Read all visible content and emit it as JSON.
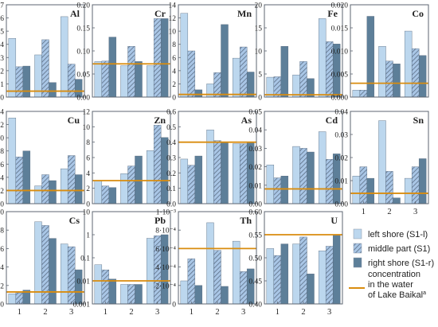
{
  "colors": {
    "left": "#bcd7ee",
    "middle": "#a9c6e6",
    "middle_hatch": "#5c6f86",
    "right": "#5d7f99",
    "baikal": "#d98c0e",
    "border": "#5c6470"
  },
  "legend": {
    "left": "left shore (S1-l)",
    "middle": "middle part (S1)",
    "right": "right shore (S1-r)",
    "line1": "concentration",
    "line2": "in the water",
    "line3": "of Lake Baikal",
    "sup": "a"
  },
  "chart_data": [
    {
      "element": "Al",
      "type": "bar",
      "categories": [
        "1",
        "2",
        "3"
      ],
      "ylim": [
        0,
        7
      ],
      "ticks": [
        "0",
        "1",
        "2",
        "3",
        "4",
        "5",
        "6",
        "7"
      ],
      "series": [
        {
          "name": "left shore (S1-l)",
          "values": [
            4.45,
            3.2,
            6.1
          ]
        },
        {
          "name": "middle part (S1)",
          "values": [
            2.3,
            4.35,
            2.5
          ]
        },
        {
          "name": "right shore (S1-r)",
          "values": [
            2.35,
            1.1,
            1.35
          ]
        }
      ],
      "baikal": 0.45
    },
    {
      "element": "Cr",
      "type": "bar",
      "categories": [
        "1",
        "2",
        "3"
      ],
      "ylim": [
        0,
        0.2
      ],
      "ticks": [
        "0.00",
        "0.05",
        "0.10",
        "0.15",
        "0.20"
      ],
      "series": [
        {
          "name": "left shore (S1-l)",
          "values": [
            0.077,
            0.068,
            0.068
          ]
        },
        {
          "name": "middle part (S1)",
          "values": [
            0.078,
            0.11,
            0.17
          ]
        },
        {
          "name": "right shore (S1-r)",
          "values": [
            0.13,
            0.077,
            0.17
          ]
        }
      ],
      "baikal": 0.072
    },
    {
      "element": "Mn",
      "type": "bar",
      "categories": [
        "1",
        "2",
        "3"
      ],
      "ylim": [
        0,
        14
      ],
      "ticks": [
        "0",
        "2",
        "4",
        "6",
        "8",
        "10",
        "12",
        "14"
      ],
      "series": [
        {
          "name": "left shore (S1-l)",
          "values": [
            12.7,
            2.0,
            5.9
          ]
        },
        {
          "name": "middle part (S1)",
          "values": [
            7.0,
            3.7,
            7.6
          ]
        },
        {
          "name": "right shore (S1-r)",
          "values": [
            1.1,
            11.0,
            3.8
          ]
        }
      ],
      "baikal": 0.4
    },
    {
      "element": "Fe",
      "type": "bar",
      "categories": [
        "1",
        "2",
        "3"
      ],
      "ylim": [
        0,
        20
      ],
      "ticks": [
        "0",
        "5",
        "10",
        "15",
        "20"
      ],
      "series": [
        {
          "name": "left shore (S1-l)",
          "values": [
            4.3,
            4.8,
            17.0
          ]
        },
        {
          "name": "middle part (S1)",
          "values": [
            4.4,
            7.7,
            12.0
          ]
        },
        {
          "name": "right shore (S1-r)",
          "values": [
            11.0,
            4.0,
            11.5
          ]
        }
      ],
      "baikal": 0.5
    },
    {
      "element": "Co",
      "type": "bar",
      "categories": [
        "1",
        "2",
        "3"
      ],
      "ylim": [
        0,
        0.02
      ],
      "ticks": [
        "0.000",
        "0.005",
        "0.010",
        "0.015",
        "0.020"
      ],
      "series": [
        {
          "name": "left shore (S1-l)",
          "values": [
            0.0015,
            0.011,
            0.0143
          ]
        },
        {
          "name": "middle part (S1)",
          "values": [
            0.0015,
            0.0078,
            0.0105
          ]
        },
        {
          "name": "right shore (S1-r)",
          "values": [
            0.0175,
            0.0072,
            0.009
          ]
        }
      ],
      "baikal": 0.003
    },
    {
      "element": "Cu",
      "type": "bar",
      "categories": [
        "1",
        "2",
        "3"
      ],
      "ylim": [
        0,
        1.4
      ],
      "ticks": [
        "0.0",
        "0.2",
        "0.4",
        "0.6",
        "0.8",
        "1.0",
        "1.2",
        "1.4"
      ],
      "series": [
        {
          "name": "left shore (S1-l)",
          "values": [
            1.3,
            0.27,
            0.53
          ]
        },
        {
          "name": "middle part (S1)",
          "values": [
            0.71,
            0.44,
            0.73
          ]
        },
        {
          "name": "right shore (S1-r)",
          "values": [
            0.8,
            0.35,
            0.44
          ]
        }
      ],
      "baikal": 0.2
    },
    {
      "element": "Zn",
      "type": "bar",
      "categories": [
        "1",
        "2",
        "3"
      ],
      "ylim": [
        0,
        12
      ],
      "ticks": [
        "0",
        "2",
        "4",
        "6",
        "8",
        "10",
        "12"
      ],
      "series": [
        {
          "name": "left shore (S1-l)",
          "values": [
            3.0,
            3.9,
            6.9
          ]
        },
        {
          "name": "middle part (S1)",
          "values": [
            2.3,
            4.9,
            10.2
          ]
        },
        {
          "name": "right shore (S1-r)",
          "values": [
            2.1,
            6.2,
            8.6
          ]
        }
      ],
      "baikal": 3.0
    },
    {
      "element": "As",
      "type": "bar",
      "categories": [
        "1",
        "2",
        "3"
      ],
      "ylim": [
        0,
        0.6
      ],
      "ticks": [
        "0.0",
        "0.1",
        "0.2",
        "0.3",
        "0.4",
        "0.5",
        "0.6"
      ],
      "series": [
        {
          "name": "left shore (S1-l)",
          "values": [
            0.29,
            0.48,
            0.39
          ]
        },
        {
          "name": "middle part (S1)",
          "values": [
            0.25,
            0.41,
            0.39
          ]
        },
        {
          "name": "right shore (S1-r)",
          "values": [
            0.31,
            0.4,
            0.4
          ]
        }
      ],
      "baikal": 0.4
    },
    {
      "element": "Cd",
      "type": "bar",
      "categories": [
        "1",
        "2",
        "3"
      ],
      "ylim": [
        0,
        0.05
      ],
      "ticks": [
        "0.00",
        "0.01",
        "0.02",
        "0.03",
        "0.04",
        "0.05"
      ],
      "series": [
        {
          "name": "left shore (S1-l)",
          "values": [
            0.021,
            0.031,
            0.039
          ]
        },
        {
          "name": "middle part (S1)",
          "values": [
            0.014,
            0.03,
            0.024
          ]
        },
        {
          "name": "right shore (S1-r)",
          "values": [
            0.015,
            0.028,
            0.027
          ]
        }
      ],
      "baikal": 0.008
    },
    {
      "element": "Sn",
      "type": "bar",
      "categories": [
        "1",
        "2",
        "3"
      ],
      "ylim": [
        0,
        0.04
      ],
      "ticks": [
        "0.00",
        "0.01",
        "0.02",
        "0.03",
        "0.04"
      ],
      "series": [
        {
          "name": "left shore (S1-l)",
          "values": [
            0.012,
            0.036,
            0.011
          ]
        },
        {
          "name": "middle part (S1)",
          "values": [
            0.016,
            0.014,
            0.016
          ]
        },
        {
          "name": "right shore (S1-r)",
          "values": [
            0.011,
            0.0025,
            0.0195
          ]
        }
      ],
      "baikal": 0.0045
    },
    {
      "element": "Cs",
      "type": "bar",
      "categories": [
        "1",
        "2",
        "3"
      ],
      "ylim": [
        0,
        0.01
      ],
      "ticks": [
        "0.000",
        "0.002",
        "0.004",
        "0.006",
        "0.008",
        "0.010"
      ],
      "series": [
        {
          "name": "left shore (S1-l)",
          "values": [
            0.0011,
            0.0089,
            0.0065
          ]
        },
        {
          "name": "middle part (S1)",
          "values": [
            0.0012,
            0.0085,
            0.0062
          ]
        },
        {
          "name": "right shore (S1-r)",
          "values": [
            0.0015,
            0.0071,
            0.0037
          ]
        }
      ],
      "baikal": 0.0013
    },
    {
      "element": "Pb",
      "type": "bar",
      "log": true,
      "categories": [
        "1",
        "2",
        "3"
      ],
      "ylim": [
        0.001,
        10
      ],
      "ticks": [
        "0.001",
        "0.01",
        "0.1",
        "1",
        "10"
      ],
      "series": [
        {
          "name": "left shore (S1-l)",
          "values": [
            0.05,
            0.007,
            0.7
          ]
        },
        {
          "name": "middle part (S1)",
          "values": [
            0.03,
            0.007,
            0.9
          ]
        },
        {
          "name": "right shore (S1-r)",
          "values": [
            0.012,
            0.007,
            1.0
          ]
        }
      ],
      "baikal": 0.01
    },
    {
      "element": "Th",
      "type": "bar",
      "categories": [
        "1",
        "2",
        "3"
      ],
      "ylim": [
        0,
        0.001
      ],
      "ticks": [
        "0",
        "2·10⁻⁴",
        "4·10⁻⁴",
        "6·10⁻⁴",
        "8·10⁻⁴",
        "1·10⁻³"
      ],
      "series": [
        {
          "name": "left shore (S1-l)",
          "values": [
            0.00025,
            0.00088,
            0.00068
          ]
        },
        {
          "name": "middle part (S1)",
          "values": [
            0.00049,
            0.00058,
            0.00035
          ]
        },
        {
          "name": "right shore (S1-r)",
          "values": [
            0.0002,
            0.00019,
            0.00038
          ]
        }
      ],
      "baikal": 0.0006
    },
    {
      "element": "U",
      "type": "bar",
      "categories": [
        "1",
        "2",
        "3"
      ],
      "ylim": [
        0.4,
        0.6
      ],
      "ticks": [
        "0.40",
        "0.45",
        "0.50",
        "0.55",
        "0.60"
      ],
      "series": [
        {
          "name": "left shore (S1-l)",
          "values": [
            0.52,
            0.53,
            0.515
          ]
        },
        {
          "name": "middle part (S1)",
          "values": [
            0.505,
            0.545,
            0.525
          ]
        },
        {
          "name": "right shore (S1-r)",
          "values": [
            0.53,
            0.465,
            0.55
          ]
        }
      ],
      "baikal": 0.55
    }
  ]
}
